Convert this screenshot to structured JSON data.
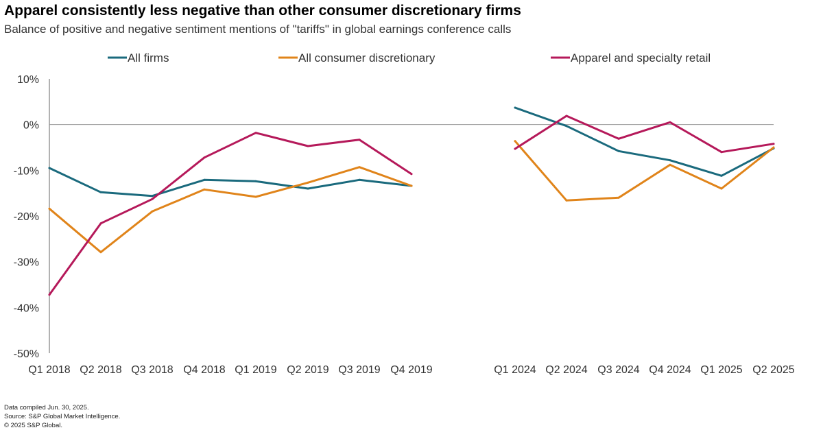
{
  "chart_data": {
    "type": "line",
    "title": "Apparel consistently less negative than other consumer discretionary firms",
    "subtitle": "Balance of positive and negative sentiment mentions of \"tariffs\" in global earnings conference calls",
    "xlabel": "",
    "ylabel": "",
    "ylim": [
      -50,
      10
    ],
    "yticks": [
      10,
      0,
      -10,
      -20,
      -30,
      -40,
      -50
    ],
    "ytick_labels": [
      "10%",
      "0%",
      "-10%",
      "-20%",
      "-30%",
      "-40%",
      "-50%"
    ],
    "categories": [
      "Q1 2018",
      "Q2 2018",
      "Q3 2018",
      "Q4 2018",
      "Q1 2019",
      "Q2 2019",
      "Q3 2019",
      "Q4 2019",
      "Q1 2024",
      "Q2 2024",
      "Q3 2024",
      "Q4 2024",
      "Q1 2025",
      "Q2 2025"
    ],
    "segments": [
      [
        0,
        7
      ],
      [
        8,
        13
      ]
    ],
    "legend_position": "top",
    "series": [
      {
        "name": "All firms",
        "color": "#1a6a7d",
        "values": [
          -9.5,
          -14.8,
          -15.6,
          -12.1,
          -12.4,
          -14.0,
          -12.1,
          -13.4,
          3.7,
          -0.3,
          -5.8,
          -7.8,
          -11.2,
          -5.2
        ]
      },
      {
        "name": "All consumer discretionary",
        "color": "#e0841a",
        "values": [
          -18.4,
          -27.9,
          -19.0,
          -14.2,
          -15.8,
          -12.7,
          -9.3,
          -13.4,
          -3.6,
          -16.6,
          -16.0,
          -8.8,
          -14.0,
          -5.0
        ]
      },
      {
        "name": "Apparel and specialty retail",
        "color": "#b5195a",
        "values": [
          -37.2,
          -21.6,
          -16.3,
          -7.2,
          -1.8,
          -4.7,
          -3.3,
          -10.8,
          -5.3,
          1.9,
          -3.1,
          0.5,
          -6.0,
          -4.2
        ]
      }
    ]
  },
  "footer": {
    "line1": "Data compiled Jun. 30, 2025.",
    "line2": "Source: S&P Global Market Intelligence.",
    "line3": "© 2025 S&P Global."
  }
}
